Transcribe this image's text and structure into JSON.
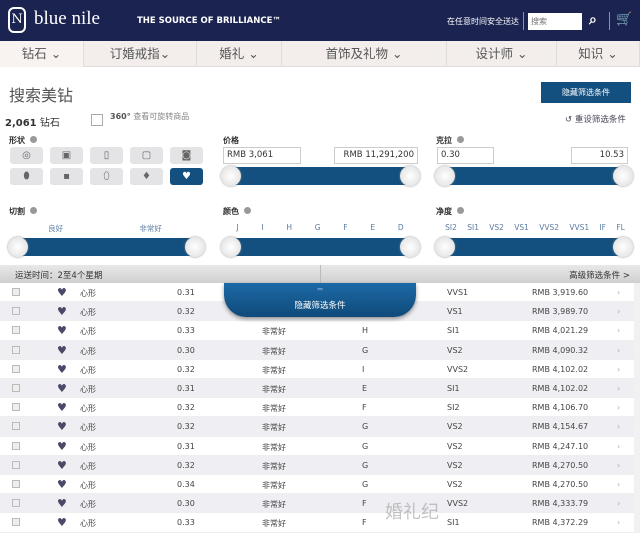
{
  "header": {
    "logo": "blue nile",
    "tagline": "THE SOURCE OF BRILLIANCE™",
    "shipping": "在任意时间安全送达",
    "search_placeholder": "搜索",
    "brand_color": "#1b2451"
  },
  "nav": [
    {
      "label": "钻石 ⌄"
    },
    {
      "label": "订婚戒指⌄"
    },
    {
      "label": "婚礼 ⌄"
    },
    {
      "label": "首饰及礼物 ⌄"
    },
    {
      "label": "设计师 ⌄"
    },
    {
      "label": "知识 ⌄"
    }
  ],
  "page": {
    "title": "搜索美钻",
    "hide_filters": "隐藏筛选条件",
    "count": "2,061",
    "count_unit": "钻石",
    "v360_badge": "360°",
    "v360_label": "查看可旋转商品",
    "reset": "重设筛选条件"
  },
  "filters": {
    "shape": {
      "label": "形状",
      "options": [
        "圆形",
        "公主方",
        "祖母绿",
        "阿斯切",
        "垫形",
        "椭圆",
        "雷迪恩",
        "梨形",
        "马眼",
        "心形"
      ],
      "selected": "心形"
    },
    "price": {
      "label": "价格",
      "min": "RMB 3,061",
      "max": "RMB 11,291,200"
    },
    "carat": {
      "label": "克拉",
      "min": "0.30",
      "max": "10.53"
    },
    "cut": {
      "label": "切割",
      "ticks": [
        "良好",
        "非常好"
      ]
    },
    "color": {
      "label": "颜色",
      "ticks": [
        "J",
        "I",
        "H",
        "G",
        "F",
        "E",
        "D"
      ]
    },
    "clarity": {
      "label": "净度",
      "ticks": [
        "SI2",
        "SI1",
        "VS2",
        "VS1",
        "VVS2",
        "VVS1",
        "IF",
        "FL"
      ]
    }
  },
  "bar": {
    "delivery": "运送时间：2至4个星期",
    "advanced": "高级筛选条件 >",
    "pull_tab": "隐藏筛选条件"
  },
  "rows": [
    [
      "心形",
      "0.31",
      "",
      "",
      "VVS1",
      "RMB 3,919.60"
    ],
    [
      "心形",
      "0.32",
      "",
      "",
      "VS1",
      "RMB 3,989.70"
    ],
    [
      "心形",
      "0.33",
      "非常好",
      "H",
      "SI1",
      "RMB 4,021.29"
    ],
    [
      "心形",
      "0.30",
      "非常好",
      "G",
      "VS2",
      "RMB 4,090.32"
    ],
    [
      "心形",
      "0.32",
      "非常好",
      "I",
      "VVS2",
      "RMB 4,102.02"
    ],
    [
      "心形",
      "0.31",
      "非常好",
      "E",
      "SI1",
      "RMB 4,102.02"
    ],
    [
      "心形",
      "0.32",
      "非常好",
      "F",
      "SI2",
      "RMB 4,106.70"
    ],
    [
      "心形",
      "0.32",
      "非常好",
      "G",
      "VS2",
      "RMB 4,154.67"
    ],
    [
      "心形",
      "0.31",
      "非常好",
      "G",
      "VS2",
      "RMB 4,247.10"
    ],
    [
      "心形",
      "0.32",
      "非常好",
      "G",
      "VS2",
      "RMB 4,270.50"
    ],
    [
      "心形",
      "0.34",
      "非常好",
      "G",
      "VS2",
      "RMB 4,270.50"
    ],
    [
      "心形",
      "0.30",
      "非常好",
      "F",
      "VVS2",
      "RMB 4,333.79"
    ],
    [
      "心形",
      "0.33",
      "非常好",
      "F",
      "SI1",
      "RMB 4,372.29"
    ]
  ],
  "watermark": "婚礼纪"
}
